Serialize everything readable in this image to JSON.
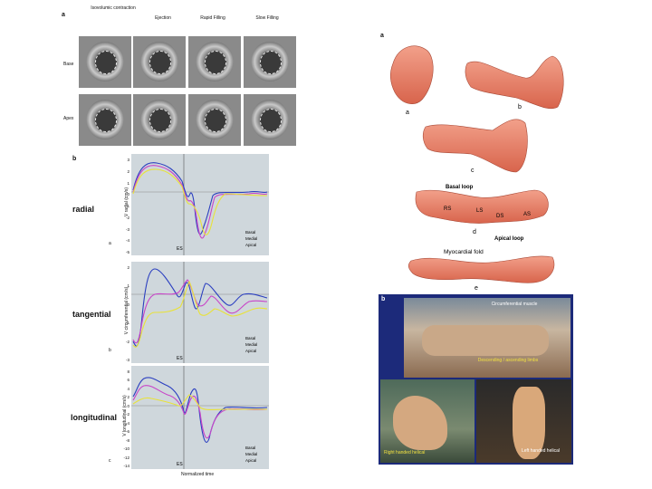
{
  "left": {
    "panel_a_label": "a",
    "phases": [
      "Isovolumic contraction",
      "Ejection",
      "Rapid Filling",
      "Slow Filling"
    ],
    "rows": [
      "Base",
      "Apex"
    ],
    "panel_b_label": "b"
  },
  "charts": [
    {
      "name": "radial",
      "sub": "a",
      "ylabel": "V radial (cm/s)",
      "yticks": [
        "3",
        "2",
        "1",
        "0",
        "-1",
        "-2",
        "-3",
        "-4",
        "-5"
      ],
      "es_label": "ES",
      "legend": [
        "Basal",
        "Medial",
        "Apical"
      ]
    },
    {
      "name": "tangential",
      "sub": "b",
      "ylabel": "V circumferential (cm/s)",
      "yticks": [
        "2",
        "1",
        "0",
        "-1",
        "-2",
        "-3"
      ],
      "es_label": "ES",
      "legend": [
        "Basal",
        "Medial",
        "Apical"
      ]
    },
    {
      "name": "longitudinal",
      "sub": "c",
      "ylabel": "V longitudinal (cm/s)",
      "yticks": [
        "8",
        "6",
        "4",
        "2",
        "0",
        "-2",
        "-4",
        "-6",
        "-8",
        "-10",
        "-12",
        "-14"
      ],
      "es_label": "ES",
      "legend": [
        "Basal",
        "Medial",
        "Apical"
      ],
      "xlabel": "Normalized time"
    }
  ],
  "colors": {
    "basal": "#2b3fc0",
    "medial": "#c844c8",
    "apical": "#e8e23a"
  },
  "right": {
    "panel_a_label": "a",
    "fig_letters": [
      "a",
      "b",
      "c",
      "d",
      "e"
    ],
    "basal_loop": "Basal loop",
    "apical_loop": "Apical loop",
    "segments": [
      "RS",
      "LS",
      "DS",
      "AS"
    ],
    "myocardial_fold": "Myocardial fold",
    "panel_b_label": "b",
    "photo_labels": {
      "circumferential": "Circumferential muscle",
      "descending": "Descending / ascending limbs",
      "right": "Right handed helical",
      "left": "Left handed helical"
    }
  }
}
